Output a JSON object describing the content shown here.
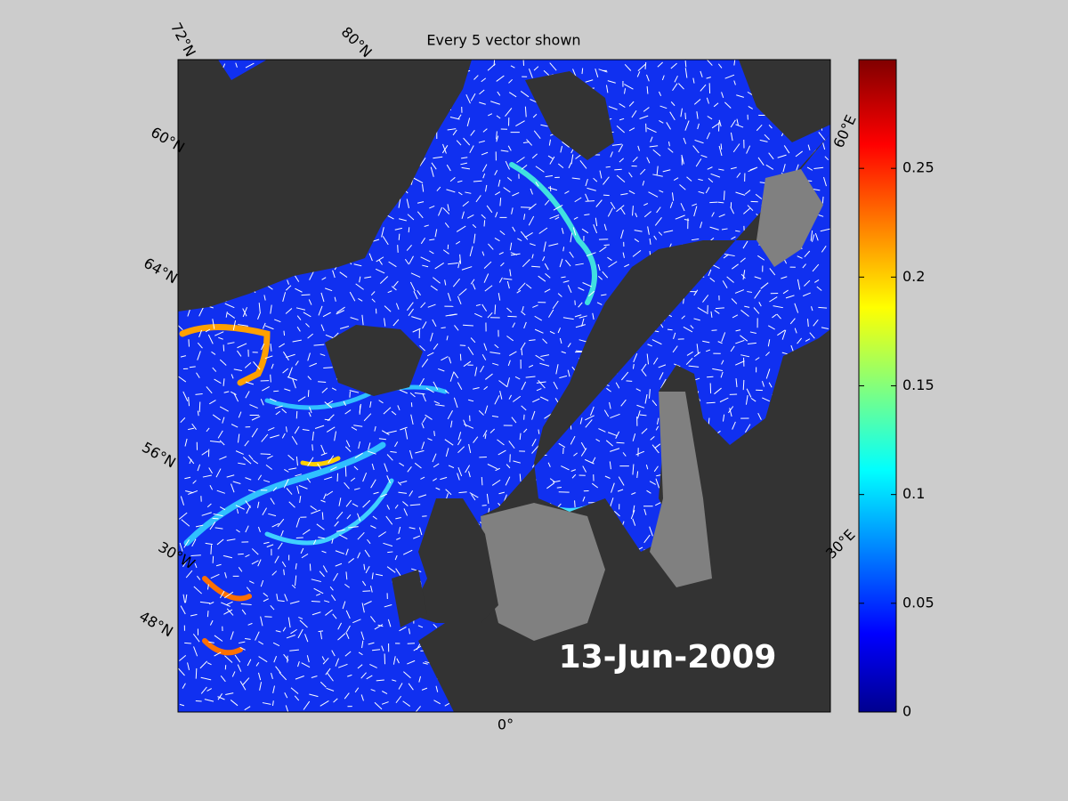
{
  "title": "Every 5 vector shown",
  "date": "13-Jun-2009",
  "graticule_labels": [
    "72°N",
    "80°N",
    "60°N",
    "64°N",
    "56°N",
    "30°W",
    "48°N",
    "0°",
    "30°E",
    "60°E"
  ],
  "colorbar": {
    "lim": [
      0,
      0.3
    ],
    "ticks": [
      0,
      0.05,
      0.1,
      0.15,
      0.2,
      0.25
    ]
  }
}
